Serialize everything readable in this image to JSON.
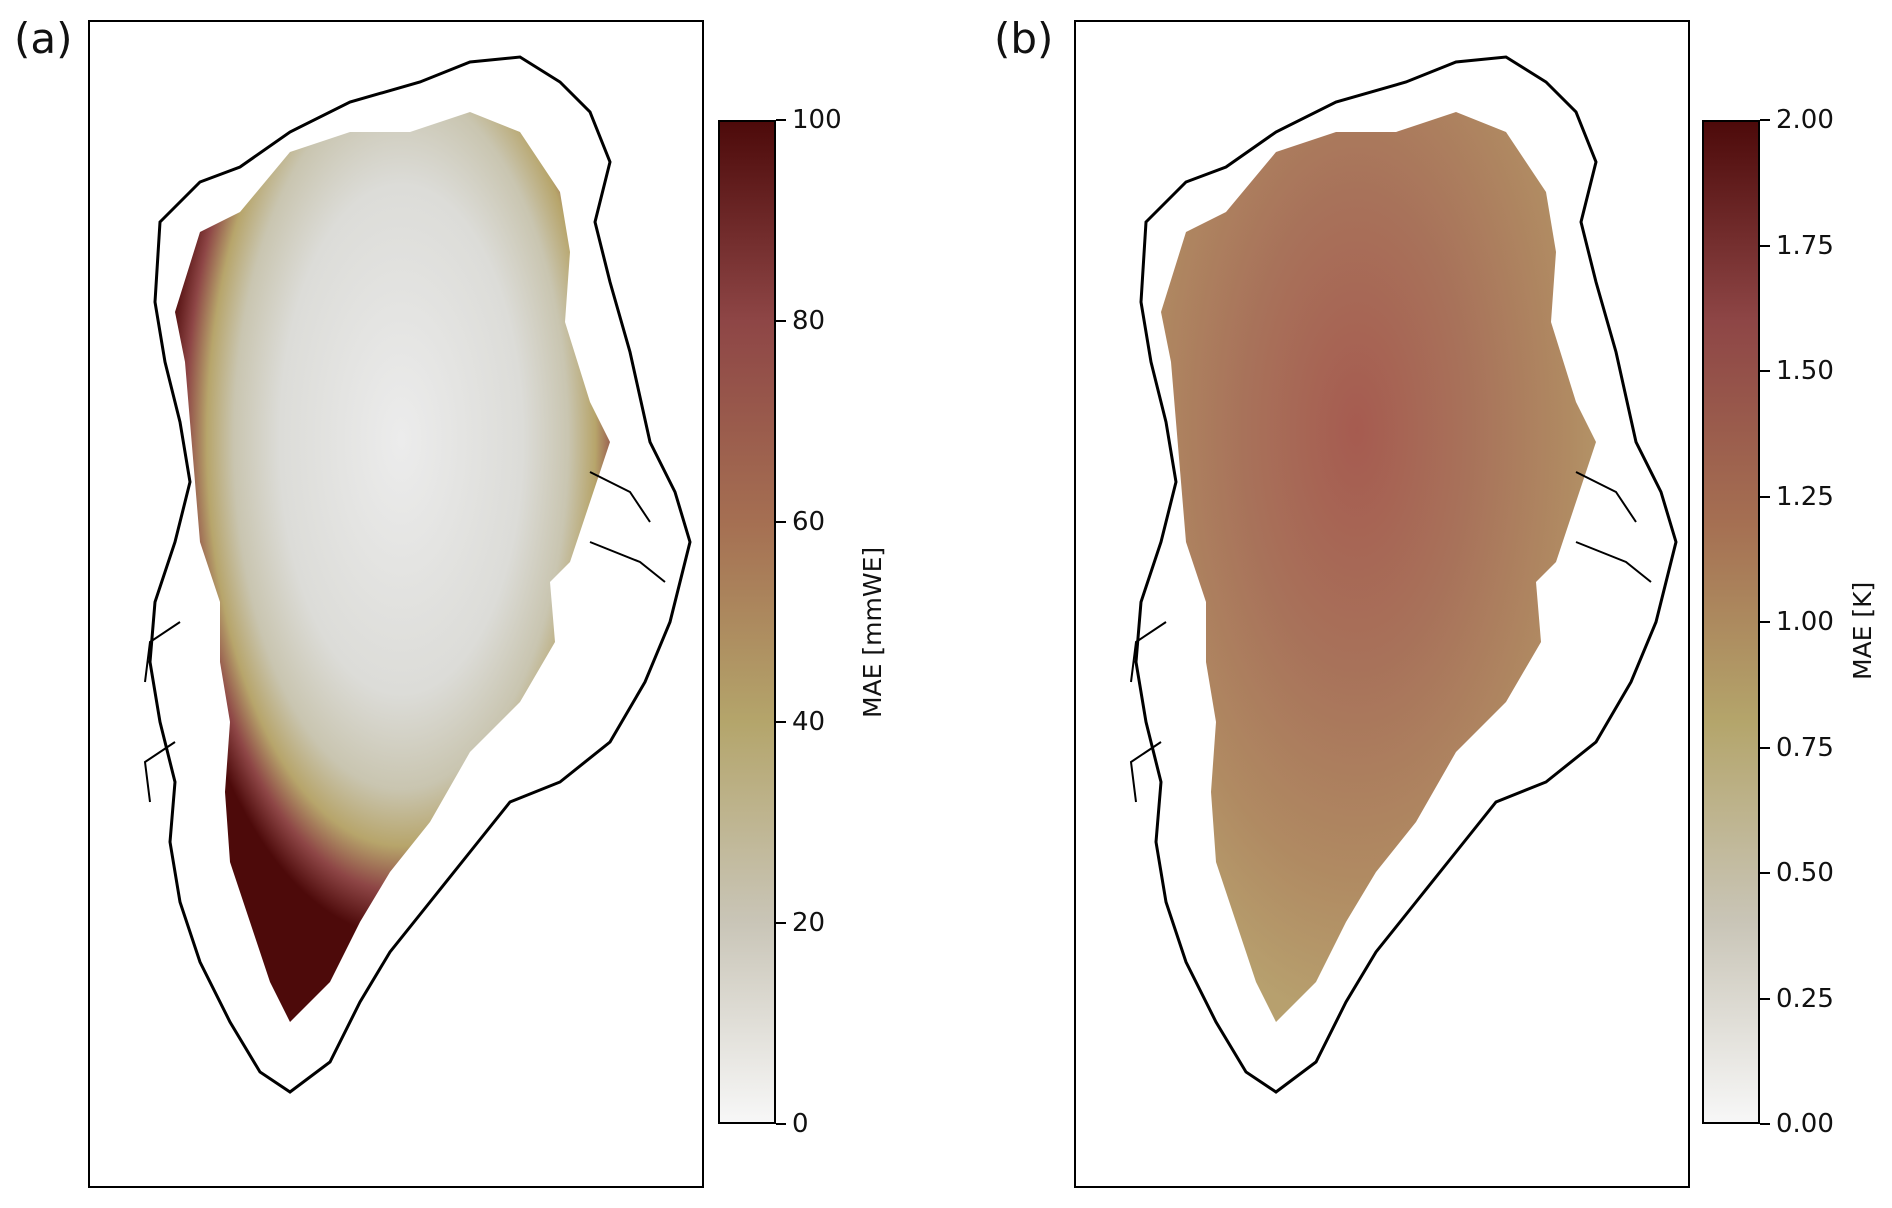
{
  "panels": [
    {
      "label": "(a)",
      "colorbar": {
        "title": "MAE [mmWE]",
        "ticks": [
          "0",
          "20",
          "40",
          "60",
          "80",
          "100"
        ],
        "range": [
          0,
          100
        ]
      }
    },
    {
      "label": "(b)",
      "colorbar": {
        "title": "MAE [K]",
        "ticks": [
          "0.00",
          "0.25",
          "0.50",
          "0.75",
          "1.00",
          "1.25",
          "1.50",
          "1.75",
          "2.00"
        ],
        "range": [
          0,
          2
        ]
      }
    }
  ],
  "colors": {
    "low": "#f7f7f7",
    "mid_low": "#c9c5b7",
    "mid": "#b4a56b",
    "mid_high": "#a56f52",
    "high_mid": "#8e4646",
    "high": "#4d0a0a",
    "coastline": "#000000"
  }
}
